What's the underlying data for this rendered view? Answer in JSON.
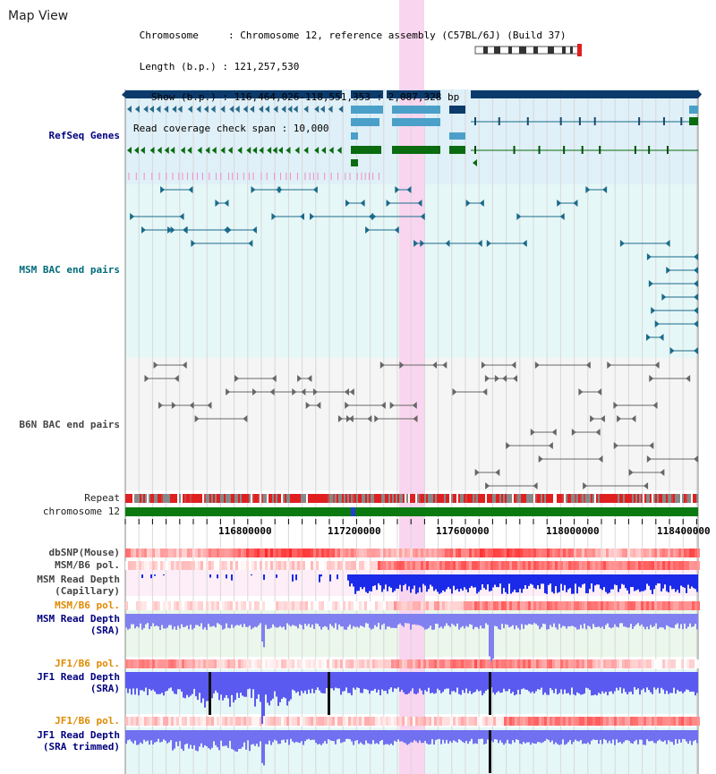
{
  "header": {
    "title": "Map View",
    "chromosome_line": " Chromosome     : Chromosome 12, reference assembly (C57BL/6J) (Build 37)",
    "length_line": " Length (b.p.) : 121,257,530",
    "show_line": "   Show (b.p.) : 116,464,026-118,551,353 : 2,087,328 bp",
    "coverage_line": "Read coverage check span : 10,000"
  },
  "tracks": {
    "refseq": "RefSeq Genes",
    "msm_bac": "MSM BAC end pairs",
    "b6n_bac": "B6N BAC end pairs",
    "repeat": "Repeat",
    "chromosome": "chromosome 12",
    "dbsnp": "dbSNP(Mouse)",
    "msm_b6_pol_1": "MSM/B6 pol.",
    "msm_depth_cap_1": "MSM Read Depth",
    "msm_depth_cap_2": "(Capillary)",
    "msm_b6_pol_2": "MSM/B6 pol.",
    "msm_depth_sra_1": "MSM Read Depth",
    "msm_depth_sra_2": "(SRA)",
    "jf1_b6_pol_1": "JF1/B6 pol.",
    "jf1_depth_sra_1": "JF1 Read Depth",
    "jf1_depth_sra_2": "(SRA)",
    "jf1_b6_pol_2": "JF1/B6 pol.",
    "jf1_depth_trim_1": "JF1 Read Depth",
    "jf1_depth_trim_2": "(SRA trimmed)"
  },
  "axis": {
    "ticks": [
      "116800000",
      "117200000",
      "117600000",
      "118000000",
      "118400000"
    ]
  },
  "colors": {
    "refseq_label": "#00007f",
    "msm_label": "#006b7a",
    "pol_label": "#e08a00",
    "highlight": "#f9d5ef",
    "gene_dark": "#0b3a6b",
    "gene_green": "#0a6b10"
  }
}
